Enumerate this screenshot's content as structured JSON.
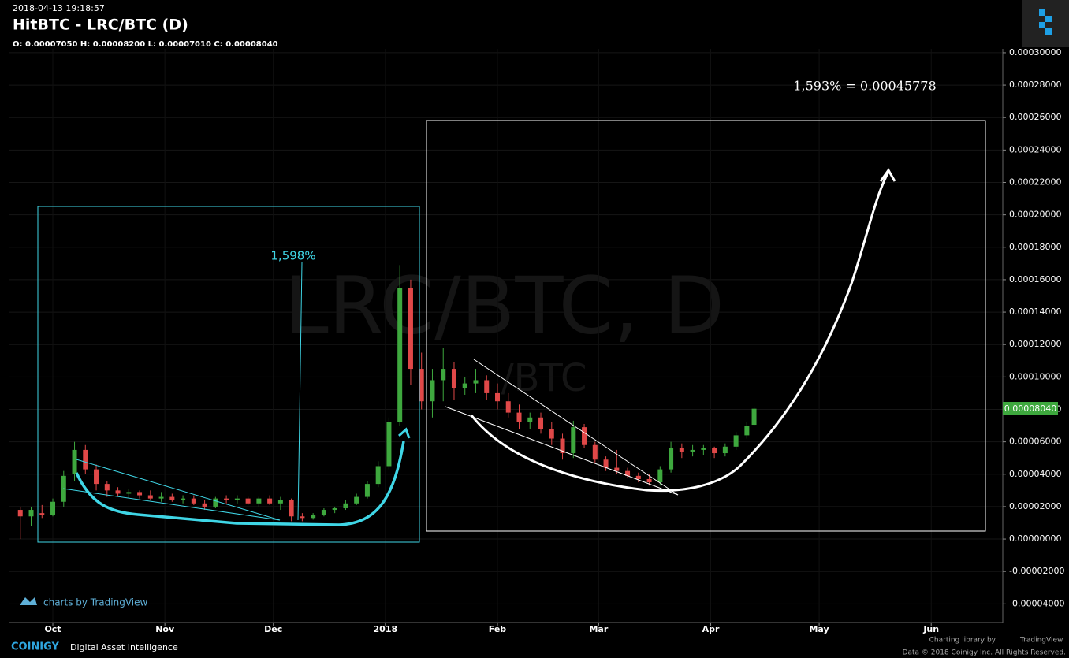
{
  "header": {
    "timestamp": "2018-04-13 19:18:57",
    "title": "HitBTC - LRC/BTC (D)",
    "ohlc": "O: 0.00007050 H: 0.00008200 L: 0.00007010 C: 0.00008040"
  },
  "chart_data": {
    "type": "candlestick",
    "watermark": "LRC/BTC, D",
    "watermark_sub": "/BTC",
    "annotations": [
      "1,598%",
      "1,593% = 0.00045778"
    ],
    "last_price_label": "0.00008040",
    "up_color": "#3ea83e",
    "down_color": "#e04848",
    "grid": true,
    "ylim": [
      -5.15e-05,
      0.0003024
    ],
    "yticks": [
      {
        "value": -4e-05,
        "label": "-0.00004000"
      },
      {
        "value": -2e-05,
        "label": "-0.00002000"
      },
      {
        "value": 0,
        "label": "0.00000000"
      },
      {
        "value": 2e-05,
        "label": "0.00002000"
      },
      {
        "value": 4e-05,
        "label": "0.00004000"
      },
      {
        "value": 6e-05,
        "label": "0.00006000"
      },
      {
        "value": 8e-05,
        "label": "0.00008000"
      },
      {
        "value": 0.0001,
        "label": "0.00010000"
      },
      {
        "value": 0.00012,
        "label": "0.00012000"
      },
      {
        "value": 0.00014,
        "label": "0.00014000"
      },
      {
        "value": 0.00016,
        "label": "0.00016000"
      },
      {
        "value": 0.00018,
        "label": "0.00018000"
      },
      {
        "value": 0.0002,
        "label": "0.00020000"
      },
      {
        "value": 0.00022,
        "label": "0.00022000"
      },
      {
        "value": 0.00024,
        "label": "0.00024000"
      },
      {
        "value": 0.00026,
        "label": "0.00026000"
      },
      {
        "value": 0.00028,
        "label": "0.00028000"
      },
      {
        "value": 0.0003,
        "label": "0.00030000"
      }
    ],
    "xlim": [
      -12,
      262.8
    ],
    "xticks": [
      {
        "value": 0,
        "label": "Oct"
      },
      {
        "value": 31,
        "label": "Nov"
      },
      {
        "value": 61,
        "label": "Dec"
      },
      {
        "value": 92,
        "label": "2018"
      },
      {
        "value": 123,
        "label": "Feb"
      },
      {
        "value": 151,
        "label": "Mar"
      },
      {
        "value": 182,
        "label": "Apr"
      },
      {
        "value": 212,
        "label": "May"
      },
      {
        "value": 243,
        "label": "Jun"
      }
    ],
    "x": [
      -9,
      -6,
      -3,
      0,
      3,
      6,
      9,
      12,
      15,
      18,
      21,
      24,
      27,
      30,
      33,
      36,
      39,
      42,
      45,
      48,
      51,
      54,
      57,
      60,
      63,
      66,
      69,
      72,
      75,
      78,
      81,
      84,
      87,
      90,
      93,
      96,
      99,
      102,
      105,
      108,
      111,
      114,
      117,
      120,
      123,
      126,
      129,
      132,
      135,
      138,
      141,
      144,
      147,
      150,
      153,
      156,
      159,
      162,
      165,
      168,
      171,
      174,
      177,
      180,
      183,
      186,
      189,
      192,
      194
    ],
    "candles": [
      [
        1.8e-05,
        2e-05,
        0,
        1.4e-05
      ],
      [
        1.4e-05,
        2e-05,
        8e-06,
        1.8e-05
      ],
      [
        1.6e-05,
        2.1e-05,
        1.3e-05,
        1.5e-05
      ],
      [
        1.5e-05,
        2.5e-05,
        1.4e-05,
        2.3e-05
      ],
      [
        2.3e-05,
        4.2e-05,
        2e-05,
        3.9e-05
      ],
      [
        4e-05,
        6e-05,
        3.6e-05,
        5.5e-05
      ],
      [
        5.5e-05,
        5.8e-05,
        4e-05,
        4.3e-05
      ],
      [
        4.3e-05,
        4.6e-05,
        3e-05,
        3.4e-05
      ],
      [
        3.4e-05,
        3.6e-05,
        2.6e-05,
        3e-05
      ],
      [
        3e-05,
        3.2e-05,
        2.6e-05,
        2.8e-05
      ],
      [
        2.8e-05,
        3.1e-05,
        2.5e-05,
        2.9e-05
      ],
      [
        2.9e-05,
        3e-05,
        2.5e-05,
        2.7e-05
      ],
      [
        2.7e-05,
        3e-05,
        2.4e-05,
        2.5e-05
      ],
      [
        2.5e-05,
        2.9e-05,
        2.3e-05,
        2.6e-05
      ],
      [
        2.6e-05,
        2.8e-05,
        2.3e-05,
        2.4e-05
      ],
      [
        2.4e-05,
        2.7e-05,
        2.2e-05,
        2.5e-05
      ],
      [
        2.5e-05,
        2.7e-05,
        2.1e-05,
        2.2e-05
      ],
      [
        2.2e-05,
        2.4e-05,
        1.8e-05,
        2e-05
      ],
      [
        2e-05,
        2.6e-05,
        1.9e-05,
        2.5e-05
      ],
      [
        2.5e-05,
        2.7e-05,
        2.2e-05,
        2.4e-05
      ],
      [
        2.4e-05,
        2.7e-05,
        2.2e-05,
        2.5e-05
      ],
      [
        2.5e-05,
        2.6e-05,
        2.1e-05,
        2.2e-05
      ],
      [
        2.2e-05,
        2.6e-05,
        2e-05,
        2.5e-05
      ],
      [
        2.5e-05,
        2.7e-05,
        2.1e-05,
        2.2e-05
      ],
      [
        2.2e-05,
        2.6e-05,
        1.8e-05,
        2.4e-05
      ],
      [
        2.4e-05,
        2.5e-05,
        1.1e-05,
        1.4e-05
      ],
      [
        1.4e-05,
        1.6e-05,
        1.1e-05,
        1.3e-05
      ],
      [
        1.3e-05,
        1.6e-05,
        1.2e-05,
        1.5e-05
      ],
      [
        1.5e-05,
        1.9e-05,
        1.4e-05,
        1.8e-05
      ],
      [
        1.8e-05,
        2e-05,
        1.6e-05,
        1.9e-05
      ],
      [
        1.9e-05,
        2.4e-05,
        1.8e-05,
        2.2e-05
      ],
      [
        2.2e-05,
        2.8e-05,
        2.1e-05,
        2.6e-05
      ],
      [
        2.6e-05,
        3.6e-05,
        2.5e-05,
        3.4e-05
      ],
      [
        3.4e-05,
        4.8e-05,
        3.2e-05,
        4.5e-05
      ],
      [
        4.5e-05,
        7.5e-05,
        4.3e-05,
        7.2e-05
      ],
      [
        7.2e-05,
        0.000169,
        7e-05,
        0.000155
      ],
      [
        0.000155,
        0.00016,
        9.5e-05,
        0.000105
      ],
      [
        0.000105,
        0.000115,
        8e-05,
        8.5e-05
      ],
      [
        8.5e-05,
        0.000105,
        7.5e-05,
        9.8e-05
      ],
      [
        9.8e-05,
        0.000118,
        8.5e-05,
        0.000105
      ],
      [
        0.000105,
        0.000109,
        8.6e-05,
        9.3e-05
      ],
      [
        9.3e-05,
        0.0001,
        8.9e-05,
        9.6e-05
      ],
      [
        9.6e-05,
        0.000105,
        9e-05,
        9.8e-05
      ],
      [
        9.8e-05,
        0.000101,
        8.6e-05,
        9e-05
      ],
      [
        9e-05,
        9.6e-05,
        8e-05,
        8.5e-05
      ],
      [
        8.5e-05,
        9e-05,
        7.5e-05,
        7.8e-05
      ],
      [
        7.8e-05,
        8.3e-05,
        6.8e-05,
        7.2e-05
      ],
      [
        7.2e-05,
        7.8e-05,
        6.8e-05,
        7.5e-05
      ],
      [
        7.5e-05,
        7.8e-05,
        6.5e-05,
        6.8e-05
      ],
      [
        6.8e-05,
        7.2e-05,
        5.8e-05,
        6.2e-05
      ],
      [
        6.2e-05,
        6.5e-05,
        4.9e-05,
        5.3e-05
      ],
      [
        5.3e-05,
        7.3e-05,
        5e-05,
        6.9e-05
      ],
      [
        6.9e-05,
        7.1e-05,
        5.6e-05,
        5.8e-05
      ],
      [
        5.8e-05,
        6e-05,
        4.7e-05,
        4.9e-05
      ],
      [
        4.9e-05,
        5.1e-05,
        4.2e-05,
        4.4e-05
      ],
      [
        4.4e-05,
        5.5e-05,
        4e-05,
        4.2e-05
      ],
      [
        4.2e-05,
        4.4e-05,
        3.8e-05,
        3.9e-05
      ],
      [
        3.9e-05,
        4.1e-05,
        3.5e-05,
        3.7e-05
      ],
      [
        3.7e-05,
        4e-05,
        3.3e-05,
        3.5e-05
      ],
      [
        3.5e-05,
        4.5e-05,
        3.3e-05,
        4.3e-05
      ],
      [
        4.3e-05,
        6e-05,
        4.1e-05,
        5.6e-05
      ],
      [
        5.6e-05,
        5.9e-05,
        5e-05,
        5.4e-05
      ],
      [
        5.4e-05,
        5.8e-05,
        5.1e-05,
        5.5e-05
      ],
      [
        5.5e-05,
        5.8e-05,
        5.2e-05,
        5.6e-05
      ],
      [
        5.6e-05,
        5.7e-05,
        5e-05,
        5.3e-05
      ],
      [
        5.3e-05,
        5.9e-05,
        5.1e-05,
        5.7e-05
      ],
      [
        5.7e-05,
        6.6e-05,
        5.5e-05,
        6.4e-05
      ],
      [
        6.4e-05,
        7.2e-05,
        6.2e-05,
        7e-05
      ],
      [
        7.05e-05,
        8.2e-05,
        7.01e-05,
        8.04e-05
      ]
    ]
  },
  "footer": {
    "tv_badge": "charts by TradingView",
    "brand": "COINIGY",
    "tagline": "Digital Asset Intelligence",
    "library": "Charting library by",
    "library_name": "TradingView",
    "copyright": "Data © 2018 Coinigy Inc. All Rights Reserved."
  }
}
